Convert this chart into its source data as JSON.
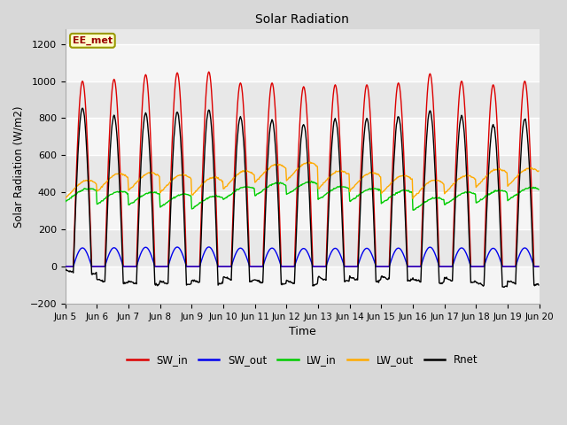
{
  "title": "Solar Radiation",
  "xlabel": "Time",
  "ylabel": "Solar Radiation (W/m2)",
  "ylim": [
    -200,
    1280
  ],
  "yticks": [
    -200,
    0,
    200,
    400,
    600,
    800,
    1000,
    1200
  ],
  "n_days": 15,
  "dt_hours": 0.5,
  "sw_peaks": [
    1000,
    1010,
    1035,
    1045,
    1050,
    990,
    990,
    970,
    980,
    980,
    990,
    1040,
    1000,
    980,
    1000
  ],
  "lw_in_bases": [
    380,
    365,
    360,
    350,
    340,
    390,
    410,
    415,
    390,
    380,
    370,
    330,
    360,
    370,
    385
  ],
  "lw_out_bases": [
    405,
    440,
    445,
    435,
    420,
    455,
    490,
    500,
    455,
    445,
    430,
    405,
    430,
    465,
    470
  ],
  "colors": {
    "SW_in": "#dd0000",
    "SW_out": "#0000ee",
    "LW_in": "#00cc00",
    "LW_out": "#ffaa00",
    "Rnet": "#000000"
  },
  "background_color": "#d8d8d8",
  "plot_bg_color": "#e8e8e8",
  "grid_color": "#ffffff",
  "legend_box_label": "EE_met",
  "legend_box_color": "#ffffcc",
  "legend_box_edge": "#999900",
  "xtick_labels": [
    "Jun 5",
    "Jun 6",
    "Jun 7",
    "Jun 8",
    "Jun 9",
    "Jun 10",
    "Jun 11",
    "Jun 12",
    "Jun 13",
    "Jun 14",
    "Jun 15",
    "Jun 16",
    "Jun 17",
    "Jun 18",
    "Jun 19",
    "Jun 20"
  ],
  "linewidth": 1.0,
  "figsize": [
    6.4,
    4.8
  ],
  "dpi": 100
}
